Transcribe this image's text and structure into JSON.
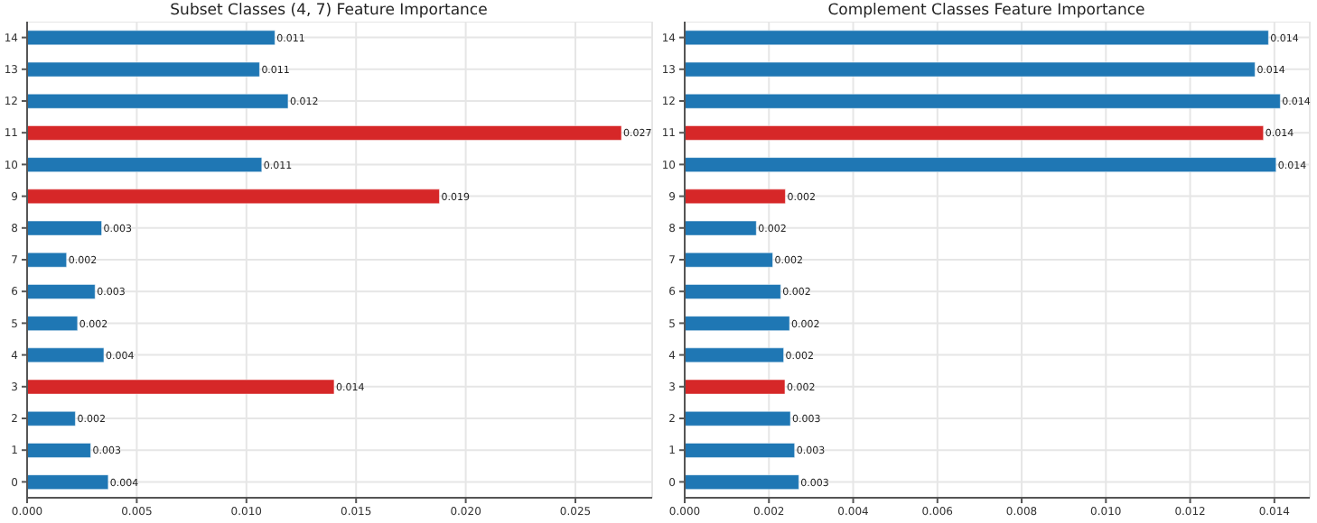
{
  "chart_data": [
    {
      "type": "bar",
      "orientation": "horizontal",
      "title": "Subset Classes (4, 7) Feature Importance",
      "categories": [
        "14",
        "13",
        "12",
        "11",
        "10",
        "9",
        "8",
        "7",
        "6",
        "5",
        "4",
        "3",
        "2",
        "1",
        "0"
      ],
      "values": [
        0.0113,
        0.0106,
        0.0119,
        0.0271,
        0.0107,
        0.0188,
        0.0034,
        0.0018,
        0.0031,
        0.0023,
        0.0035,
        0.014,
        0.0022,
        0.0029,
        0.0037
      ],
      "colors": [
        "#1f77b4",
        "#1f77b4",
        "#1f77b4",
        "#d62728",
        "#1f77b4",
        "#d62728",
        "#1f77b4",
        "#1f77b4",
        "#1f77b4",
        "#1f77b4",
        "#1f77b4",
        "#d62728",
        "#1f77b4",
        "#1f77b4",
        "#1f77b4"
      ],
      "value_labels": [
        "0.011",
        "0.011",
        "0.012",
        "0.027",
        "0.011",
        "0.019",
        "0.003",
        "0.002",
        "0.003",
        "0.002",
        "0.004",
        "0.014",
        "0.002",
        "0.003",
        "0.004"
      ],
      "xlim": [
        0,
        0.0285
      ],
      "xticks": [
        {
          "value": 0,
          "label": "0.000"
        },
        {
          "value": 0.005,
          "label": "0.005"
        },
        {
          "value": 0.01,
          "label": "0.010"
        },
        {
          "value": 0.015,
          "label": "0.015"
        },
        {
          "value": 0.02,
          "label": "0.020"
        },
        {
          "value": 0.025,
          "label": "0.025"
        }
      ],
      "grid": true
    },
    {
      "type": "bar",
      "orientation": "horizontal",
      "title": "Complement Classes Feature Importance",
      "categories": [
        "14",
        "13",
        "12",
        "11",
        "10",
        "9",
        "8",
        "7",
        "6",
        "5",
        "4",
        "3",
        "2",
        "1",
        "0"
      ],
      "values": [
        0.01386,
        0.01354,
        0.01414,
        0.01374,
        0.01404,
        0.00239,
        0.0017,
        0.00209,
        0.00228,
        0.00249,
        0.00235,
        0.00238,
        0.00251,
        0.00261,
        0.00271
      ],
      "colors": [
        "#1f77b4",
        "#1f77b4",
        "#1f77b4",
        "#d62728",
        "#1f77b4",
        "#d62728",
        "#1f77b4",
        "#1f77b4",
        "#1f77b4",
        "#1f77b4",
        "#1f77b4",
        "#d62728",
        "#1f77b4",
        "#1f77b4",
        "#1f77b4"
      ],
      "value_labels": [
        "0.014",
        "0.014",
        "0.014",
        "0.014",
        "0.014",
        "0.002",
        "0.002",
        "0.002",
        "0.002",
        "0.002",
        "0.002",
        "0.002",
        "0.003",
        "0.003",
        "0.003"
      ],
      "xlim": [
        0,
        0.01484
      ],
      "xticks": [
        {
          "value": 0,
          "label": "0.000"
        },
        {
          "value": 0.002,
          "label": "0.002"
        },
        {
          "value": 0.004,
          "label": "0.004"
        },
        {
          "value": 0.006,
          "label": "0.006"
        },
        {
          "value": 0.008,
          "label": "0.008"
        },
        {
          "value": 0.01,
          "label": "0.010"
        },
        {
          "value": 0.012,
          "label": "0.012"
        },
        {
          "value": 0.014,
          "label": "0.014"
        }
      ],
      "grid": true
    }
  ]
}
